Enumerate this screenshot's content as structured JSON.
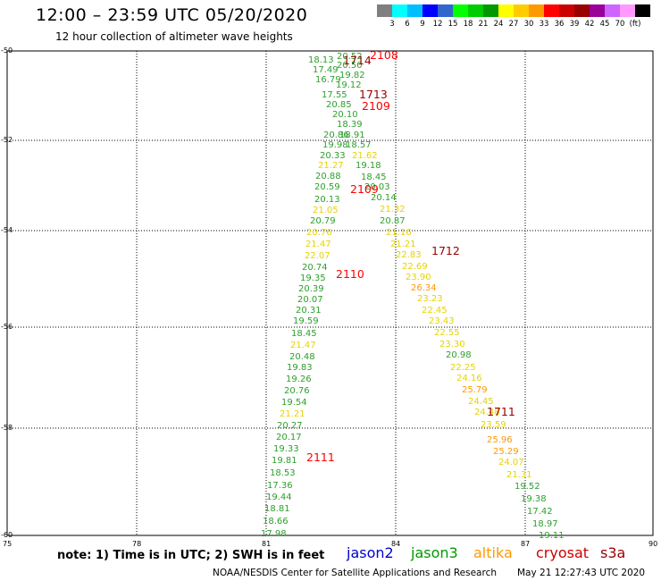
{
  "title": "12:00 – 23:59 UTC 05/20/2020",
  "subtitle": "12 hour collection of altimeter wave heights",
  "legend": {
    "colors": [
      "#7f7f7f",
      "#00ffff",
      "#00bfff",
      "#0000ff",
      "#3366cc",
      "#00ff00",
      "#00cc00",
      "#009900",
      "#ffff00",
      "#ffcc00",
      "#ff9900",
      "#ff0000",
      "#cc0000",
      "#990000",
      "#990099",
      "#cc66ff",
      "#ff99ff",
      "#000000"
    ],
    "labels": [
      "3",
      "6",
      "9",
      "12",
      "15",
      "18",
      "21",
      "24",
      "27",
      "30",
      "33",
      "36",
      "39",
      "42",
      "45",
      "70",
      "(ft)"
    ]
  },
  "axes": {
    "y_labels": [
      "-50",
      "-52",
      "-54",
      "-56",
      "-58",
      "-60"
    ],
    "x_labels": [
      "75",
      "78",
      "81",
      "84",
      "87",
      "90"
    ]
  },
  "observations": [
    {
      "t": "18.13",
      "c": "#2ca02c"
    },
    {
      "t": "20.52",
      "c": "#2ca02c"
    },
    {
      "t": "17.49",
      "c": "#2ca02c"
    },
    {
      "t": "20.50",
      "c": "#2ca02c"
    },
    {
      "t": "19.82",
      "c": "#2ca02c"
    },
    {
      "t": "16.79",
      "c": "#2ca02c"
    },
    {
      "t": "19.12",
      "c": "#2ca02c"
    },
    {
      "t": "17.55",
      "c": "#2ca02c"
    },
    {
      "t": "20.85",
      "c": "#2ca02c"
    },
    {
      "t": "20.10",
      "c": "#2ca02c"
    },
    {
      "t": "18.39",
      "c": "#2ca02c"
    },
    {
      "t": "20.86",
      "c": "#2ca02c"
    },
    {
      "t": "18.91",
      "c": "#2ca02c"
    },
    {
      "t": "19.98",
      "c": "#2ca02c"
    },
    {
      "t": "18.57",
      "c": "#2ca02c"
    },
    {
      "t": "20.33",
      "c": "#2ca02c"
    },
    {
      "t": "21.62",
      "c": "#e6d300"
    },
    {
      "t": "21.27",
      "c": "#e6d300"
    },
    {
      "t": "19.18",
      "c": "#2ca02c"
    },
    {
      "t": "20.88",
      "c": "#2ca02c"
    },
    {
      "t": "18.45",
      "c": "#2ca02c"
    },
    {
      "t": "20.59",
      "c": "#2ca02c"
    },
    {
      "t": "20.03",
      "c": "#2ca02c"
    },
    {
      "t": "20.13",
      "c": "#2ca02c"
    },
    {
      "t": "20.14",
      "c": "#2ca02c"
    },
    {
      "t": "21.05",
      "c": "#e6d300"
    },
    {
      "t": "21.32",
      "c": "#e6d300"
    },
    {
      "t": "20.79",
      "c": "#2ca02c"
    },
    {
      "t": "20.87",
      "c": "#2ca02c"
    },
    {
      "t": "20.76",
      "c": "#e6d300"
    },
    {
      "t": "21.16",
      "c": "#e6d300"
    },
    {
      "t": "21.47",
      "c": "#e6d300"
    },
    {
      "t": "21.21",
      "c": "#e6d300"
    },
    {
      "t": "22.07",
      "c": "#e6d300"
    },
    {
      "t": "22.83",
      "c": "#e6d300"
    },
    {
      "t": "20.74",
      "c": "#2ca02c"
    },
    {
      "t": "22.69",
      "c": "#e6d300"
    },
    {
      "t": "19.35",
      "c": "#2ca02c"
    },
    {
      "t": "23.90",
      "c": "#e6d300"
    },
    {
      "t": "20.39",
      "c": "#2ca02c"
    },
    {
      "t": "26.34",
      "c": "#ff9900"
    },
    {
      "t": "20.07",
      "c": "#2ca02c"
    },
    {
      "t": "23.23",
      "c": "#e6d300"
    },
    {
      "t": "20.31",
      "c": "#2ca02c"
    },
    {
      "t": "22.45",
      "c": "#e6d300"
    },
    {
      "t": "19.59",
      "c": "#2ca02c"
    },
    {
      "t": "23.43",
      "c": "#e6d300"
    },
    {
      "t": "18.45",
      "c": "#2ca02c"
    },
    {
      "t": "22.55",
      "c": "#e6d300"
    },
    {
      "t": "21.47",
      "c": "#e6d300"
    },
    {
      "t": "23.30",
      "c": "#e6d300"
    },
    {
      "t": "20.48",
      "c": "#2ca02c"
    },
    {
      "t": "20.98",
      "c": "#2ca02c"
    },
    {
      "t": "19.83",
      "c": "#2ca02c"
    },
    {
      "t": "22.25",
      "c": "#e6d300"
    },
    {
      "t": "19.26",
      "c": "#2ca02c"
    },
    {
      "t": "24.16",
      "c": "#e6d300"
    },
    {
      "t": "20.76",
      "c": "#2ca02c"
    },
    {
      "t": "25.79",
      "c": "#ff9900"
    },
    {
      "t": "19.54",
      "c": "#2ca02c"
    },
    {
      "t": "24.45",
      "c": "#e6d300"
    },
    {
      "t": "21.21",
      "c": "#e6d300"
    },
    {
      "t": "24.48",
      "c": "#e6d300"
    },
    {
      "t": "20.27",
      "c": "#2ca02c"
    },
    {
      "t": "23.59",
      "c": "#e6d300"
    },
    {
      "t": "20.17",
      "c": "#2ca02c"
    },
    {
      "t": "25.96",
      "c": "#ff9900"
    },
    {
      "t": "19.33",
      "c": "#2ca02c"
    },
    {
      "t": "25.29",
      "c": "#ff9900"
    },
    {
      "t": "19.81",
      "c": "#2ca02c"
    },
    {
      "t": "24.07",
      "c": "#e6d300"
    },
    {
      "t": "18.53",
      "c": "#2ca02c"
    },
    {
      "t": "21.31",
      "c": "#e6d300"
    },
    {
      "t": "17.36",
      "c": "#2ca02c"
    },
    {
      "t": "19.52",
      "c": "#2ca02c"
    },
    {
      "t": "19.44",
      "c": "#2ca02c"
    },
    {
      "t": "19.38",
      "c": "#2ca02c"
    },
    {
      "t": "18.81",
      "c": "#2ca02c"
    },
    {
      "t": "17.42",
      "c": "#2ca02c"
    },
    {
      "t": "18.66",
      "c": "#2ca02c"
    },
    {
      "t": "18.97",
      "c": "#2ca02c"
    },
    {
      "t": "17.98",
      "c": "#2ca02c"
    },
    {
      "t": "19.11",
      "c": "#2ca02c"
    }
  ],
  "pass_labels": [
    {
      "t": "2108",
      "c": "#ff0000"
    },
    {
      "t": "1714",
      "c": "#990000"
    },
    {
      "t": "1713",
      "c": "#990000"
    },
    {
      "t": "2109",
      "c": "#ff0000"
    },
    {
      "t": "2109",
      "c": "#ff0000"
    },
    {
      "t": "1712",
      "c": "#990000"
    },
    {
      "t": "2110",
      "c": "#ff0000"
    },
    {
      "t": "1711",
      "c": "#990000"
    },
    {
      "t": "2111",
      "c": "#ff0000"
    }
  ],
  "note": "note: 1) Time is in UTC; 2) SWH is in feet",
  "satellites": [
    {
      "name": "jason2",
      "color": "#0000cc"
    },
    {
      "name": "jason3",
      "color": "#009900"
    },
    {
      "name": "altika",
      "color": "#ff9900"
    },
    {
      "name": "cryosat",
      "color": "#cc0000"
    },
    {
      "name": "s3a",
      "color": "#990000"
    }
  ],
  "credit": "NOAA/NESDIS Center for Satellite Applications and Research",
  "timestamp": "May 21 12:27:43 UTC 2020"
}
